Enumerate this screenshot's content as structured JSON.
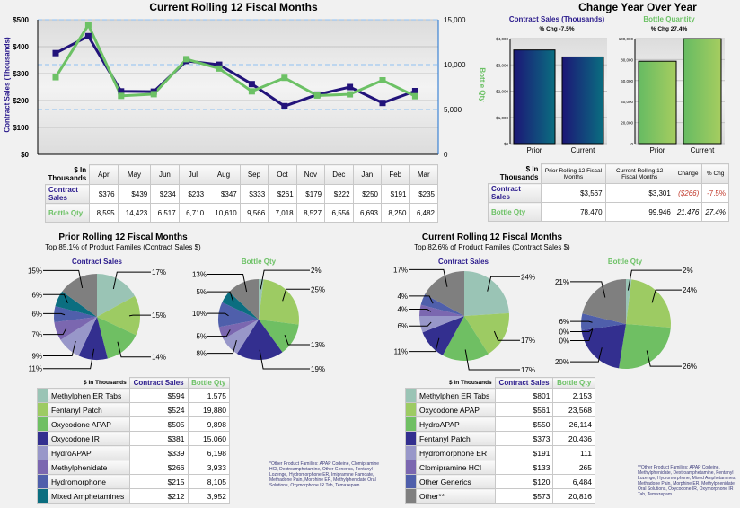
{
  "line_chart": {
    "title": "Current Rolling 12 Fiscal Months",
    "ylabel_left": "Contract Sales (Thousands)",
    "ylabel_right": "Bottle Qty",
    "left_ticks": [
      "$0",
      "$100",
      "$200",
      "$300",
      "$400",
      "$500"
    ],
    "right_ticks": [
      "0",
      "5,000",
      "10,000",
      "15,000"
    ],
    "months": [
      "Apr",
      "May",
      "Jun",
      "Jul",
      "Aug",
      "Sep",
      "Oct",
      "Nov",
      "Dec",
      "Jan",
      "Feb",
      "Mar"
    ],
    "contract_sales": [
      376,
      439,
      234,
      233,
      347,
      333,
      261,
      179,
      222,
      250,
      191,
      235
    ],
    "bottle_qty": [
      8595,
      14423,
      6517,
      6710,
      10610,
      9566,
      7018,
      8527,
      6556,
      6693,
      8250,
      6482
    ],
    "table": {
      "corner": "$ In Thousands",
      "row1_label": "Contract Sales",
      "row2_label": "Bottle Qty",
      "row1": [
        "$376",
        "$439",
        "$234",
        "$233",
        "$347",
        "$333",
        "$261",
        "$179",
        "$222",
        "$250",
        "$191",
        "$235"
      ],
      "row2": [
        "8,595",
        "14,423",
        "6,517",
        "6,710",
        "10,610",
        "9,566",
        "7,018",
        "8,527",
        "6,556",
        "6,693",
        "8,250",
        "6,482"
      ]
    }
  },
  "yoy": {
    "title": "Change Year Over Year",
    "cs_title": "Contract Sales (Thousands)",
    "cs_sub": "% Chg -7.5%",
    "cs_ticks": [
      "$0",
      "$1,000",
      "$2,000",
      "$3,000",
      "$4,000"
    ],
    "cs_values": [
      3567,
      3301
    ],
    "bq_title": "Bottle Quantity",
    "bq_sub": "% Chg 27.4%",
    "bq_ticks": [
      "0",
      "20,000",
      "40,000",
      "60,000",
      "80,000",
      "100,000"
    ],
    "bq_values": [
      78470,
      99946
    ],
    "categories": [
      "Prior",
      "Current"
    ],
    "table": {
      "corner": "$ In Thousands",
      "h1": "Prior Rolling 12 Fiscal Months",
      "h2": "Current Rolling 12 Fiscal Months",
      "h3": "Change",
      "h4": "% Chg",
      "r1": [
        "Contract Sales",
        "$3,567",
        "$3,301",
        "($266)",
        "-7.5%"
      ],
      "r2": [
        "Bottle Qty",
        "78,470",
        "99,946",
        "21,476",
        "27.4%"
      ]
    }
  },
  "colors": [
    "#9ac4b5",
    "#9dcb63",
    "#6fbf63",
    "#332f8f",
    "#9897c9",
    "#7b67b0",
    "#4f5fab",
    "#0b6e80",
    "#7f7f7f"
  ],
  "prior": {
    "title": "Prior Rolling 12 Fiscal Months",
    "sub": "Top 85.1% of Product Familes (Contract Sales $)",
    "cs_label": "Contract Sales",
    "bq_label": "Bottle Qty",
    "cs_pct": [
      17,
      15,
      14,
      11,
      9,
      7,
      6,
      6,
      15
    ],
    "bq_pct": [
      2,
      25,
      13,
      19,
      8,
      5,
      10,
      5,
      13
    ],
    "table": {
      "corner": "$ In Thousands",
      "h1": "Contract Sales",
      "h2": "Bottle Qty",
      "rows": [
        [
          "Methylphen ER Tabs",
          "$594",
          "1,575"
        ],
        [
          "Fentanyl Patch",
          "$524",
          "19,880"
        ],
        [
          "Oxycodone APAP",
          "$505",
          "9,898"
        ],
        [
          "Oxycodone IR",
          "$381",
          "15,060"
        ],
        [
          "HydroAPAP",
          "$339",
          "6,198"
        ],
        [
          "Methylphenidate",
          "$266",
          "3,933"
        ],
        [
          "Hydromorphone",
          "$215",
          "8,105"
        ],
        [
          "Mixed Amphetamines",
          "$212",
          "3,952"
        ]
      ]
    },
    "note": "*Other Product Families: APAP Codeine, Clomipramine HCl, Dextroamphetamine, Other Generics, Fentanyl Lozenge, Hydromorphone ER, Imipramine Pamoate, Methadone Pain, Morphine ER, Methylphenidate Oral Solutions, Oxymorphone IR Tab, Temazepam."
  },
  "current": {
    "title": "Current Rolling 12 Fiscal Months",
    "sub": "Top 82.6% of Product Familes (Contract Sales $)",
    "cs_label": "Contract Sales",
    "bq_label": "Bottle Qty",
    "cs_pct": [
      24,
      17,
      17,
      11,
      6,
      4,
      4,
      17
    ],
    "bq_pct": [
      2,
      24,
      26,
      20,
      0,
      0,
      6,
      21
    ],
    "table": {
      "corner": "$ In Thousands",
      "h1": "Contract Sales",
      "h2": "Bottle Qty",
      "rows": [
        [
          "Methylphen ER Tabs",
          "$801",
          "2,153"
        ],
        [
          "Oxycodone APAP",
          "$561",
          "23,568"
        ],
        [
          "HydroAPAP",
          "$550",
          "26,114"
        ],
        [
          "Fentanyl Patch",
          "$373",
          "20,436"
        ],
        [
          "Hydromorphone ER",
          "$191",
          "111"
        ],
        [
          "Clomipramine HCl",
          "$133",
          "265"
        ],
        [
          "Other Generics",
          "$120",
          "6,484"
        ],
        [
          "Other**",
          "$573",
          "20,816"
        ]
      ]
    },
    "note": "**Other Product Families: APAP Codeine, Methylphenidate, Dextroamphetamine, Fentanyl Lozenge, Hydromorphone, Mixed Amphetamines, Methadone Pain, Morphine ER, Methylphenidate Oral Solutions, Oxycodone IR, Oxymorphone IR Tab, Temazepam."
  }
}
